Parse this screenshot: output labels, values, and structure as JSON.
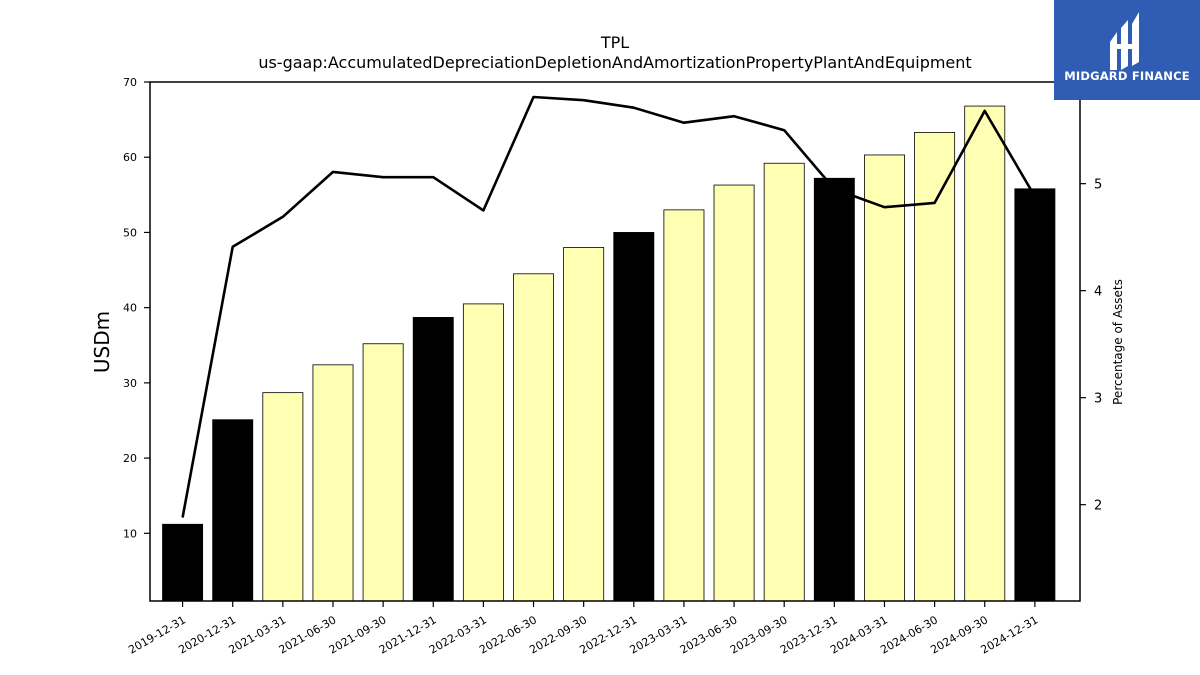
{
  "brand": {
    "name": "MIDGARD FINANCE",
    "color": "#2f5db3"
  },
  "chart_data": {
    "type": "bar",
    "title": "TPL",
    "subtitle": "us-gaap:AccumulatedDepreciationDepletionAndAmortizationPropertyPlantAndEquipment",
    "ylabel": "USDm",
    "y2label": "Percentage of Assets",
    "ylim": [
      1,
      70
    ],
    "y2lim": [
      1.1,
      5.95
    ],
    "yticks": [
      10,
      20,
      30,
      40,
      50,
      60,
      70
    ],
    "y2ticks": [
      2,
      3,
      4,
      5
    ],
    "grid": false,
    "categories": [
      "2019-12-31",
      "2020-12-31",
      "2021-03-31",
      "2021-06-30",
      "2021-09-30",
      "2021-12-31",
      "2022-03-31",
      "2022-06-30",
      "2022-09-30",
      "2022-12-31",
      "2023-03-31",
      "2023-06-30",
      "2023-09-30",
      "2023-12-31",
      "2024-03-31",
      "2024-06-30",
      "2024-09-30",
      "2024-12-31"
    ],
    "series": [
      {
        "type": "bar",
        "axis": "left",
        "values": [
          11.2,
          25.1,
          28.7,
          32.4,
          35.2,
          38.7,
          40.5,
          44.5,
          48.0,
          50.0,
          53.0,
          56.3,
          59.2,
          57.2,
          60.3,
          63.3,
          66.8,
          55.8
        ],
        "colors": [
          "#000000",
          "#000000",
          "#ffffb3",
          "#ffffb3",
          "#ffffb3",
          "#000000",
          "#ffffb3",
          "#ffffb3",
          "#ffffb3",
          "#000000",
          "#ffffb3",
          "#ffffb3",
          "#ffffb3",
          "#000000",
          "#ffffb3",
          "#ffffb3",
          "#ffffb3",
          "#000000"
        ]
      },
      {
        "type": "line",
        "axis": "right",
        "color": "#000000",
        "values": [
          1.88,
          4.41,
          4.69,
          5.11,
          5.06,
          5.06,
          4.75,
          5.81,
          5.78,
          5.71,
          5.57,
          5.63,
          5.5,
          4.95,
          4.78,
          4.82,
          5.68,
          4.88
        ]
      }
    ]
  }
}
